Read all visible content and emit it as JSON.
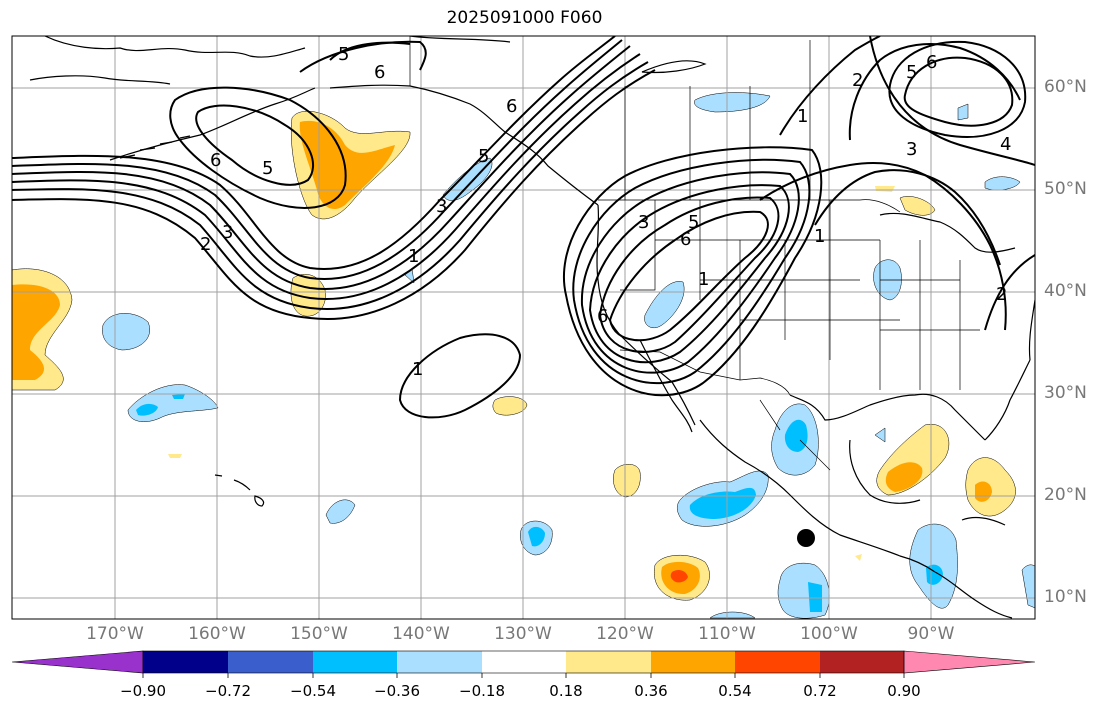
{
  "title": "2025091000 F060",
  "map": {
    "lon_labels": [
      "170°W",
      "160°W",
      "150°W",
      "140°W",
      "130°W",
      "120°W",
      "110°W",
      "100°W",
      "90°W"
    ],
    "lat_labels": [
      "60°N",
      "50°N",
      "40°N",
      "30°N",
      "20°N",
      "10°N"
    ],
    "contour_labels": [
      "5",
      "6",
      "6",
      "5",
      "2",
      "3",
      "1",
      "3",
      "5",
      "6",
      "1",
      "1",
      "2",
      "5",
      "6",
      "3",
      "4",
      "1",
      "2",
      "6",
      "3",
      "5",
      "6",
      "1"
    ],
    "marker": "storm-center"
  },
  "colorbar": {
    "tick_labels": [
      "−0.90",
      "−0.72",
      "−0.54",
      "−0.36",
      "−0.18",
      "0.18",
      "0.36",
      "0.54",
      "0.72",
      "0.90"
    ],
    "colors": [
      "#9932cc",
      "#00008b",
      "#3a5fcd",
      "#00bfff",
      "#aadfff",
      "#ffffff",
      "#ffe98a",
      "#ffa500",
      "#ff4500",
      "#b22222",
      "#ff88b0"
    ]
  }
}
